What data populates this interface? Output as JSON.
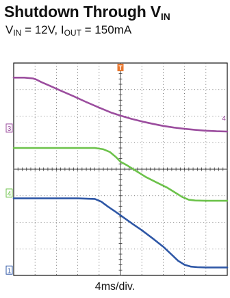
{
  "title": {
    "main": "Shutdown Through V",
    "sub": "IN"
  },
  "subtitle": {
    "v_main": "V",
    "v_sub": "IN",
    "v_rest": " = 12V, I",
    "i_sub": "OUT",
    "i_rest": " = 150mA"
  },
  "chart_data": {
    "type": "line",
    "title": "Shutdown Through VIN",
    "subtitle": "VIN = 12V, IOUT = 150mA",
    "xlabel": "4ms/div.",
    "ylabel": "",
    "grid": true,
    "x_divisions": 10,
    "y_divisions": 8,
    "xlim": [
      0,
      10
    ],
    "ylim": [
      0,
      8
    ],
    "trigger_marker": {
      "label": "T",
      "x": 5.0,
      "color": "#e8762c"
    },
    "series": [
      {
        "channel": "3",
        "color": "#9b4d9e",
        "marker_color": "#9b4d9e",
        "marker_level": 5.55,
        "x": [
          0,
          0.5,
          0.9,
          1.05,
          1.3,
          1.7,
          2.2,
          2.8,
          3.4,
          4.0,
          4.6,
          5.0,
          5.5,
          6.0,
          6.5,
          7.0,
          7.5,
          8.0,
          8.5,
          9.0,
          9.5,
          10
        ],
        "y": [
          7.45,
          7.45,
          7.42,
          7.38,
          7.28,
          7.14,
          6.96,
          6.75,
          6.53,
          6.32,
          6.12,
          6.02,
          5.9,
          5.8,
          5.71,
          5.63,
          5.57,
          5.52,
          5.48,
          5.45,
          5.43,
          5.42
        ]
      },
      {
        "channel": "4",
        "color": "#6cc24a",
        "marker_color": "#6cc24a",
        "marker_level": 3.1,
        "x": [
          0,
          1.0,
          2.0,
          3.0,
          3.8,
          4.2,
          4.5,
          4.8,
          5.0,
          5.3,
          5.7,
          6.2,
          6.7,
          7.2,
          7.6,
          7.9,
          8.2,
          8.5,
          9.0,
          9.5,
          10
        ],
        "y": [
          4.8,
          4.8,
          4.8,
          4.8,
          4.8,
          4.75,
          4.65,
          4.45,
          4.28,
          4.15,
          3.95,
          3.7,
          3.5,
          3.3,
          3.1,
          2.95,
          2.85,
          2.82,
          2.81,
          2.81,
          2.81
        ]
      },
      {
        "channel": "1",
        "color": "#2e57a6",
        "marker_color": "#2e57a6",
        "marker_level": 0.2,
        "x": [
          0,
          1.0,
          2.0,
          3.0,
          3.8,
          4.1,
          4.4,
          4.8,
          5.2,
          5.6,
          6.0,
          6.5,
          7.0,
          7.4,
          7.7,
          8.0,
          8.3,
          8.6,
          9.0,
          9.5,
          10
        ],
        "y": [
          2.9,
          2.9,
          2.9,
          2.9,
          2.88,
          2.78,
          2.6,
          2.38,
          2.15,
          1.92,
          1.7,
          1.4,
          1.08,
          0.78,
          0.55,
          0.4,
          0.33,
          0.31,
          0.3,
          0.3,
          0.3
        ]
      }
    ],
    "right_marker": {
      "label": "4",
      "level": 5.93,
      "color": "#9b4d9e"
    }
  }
}
